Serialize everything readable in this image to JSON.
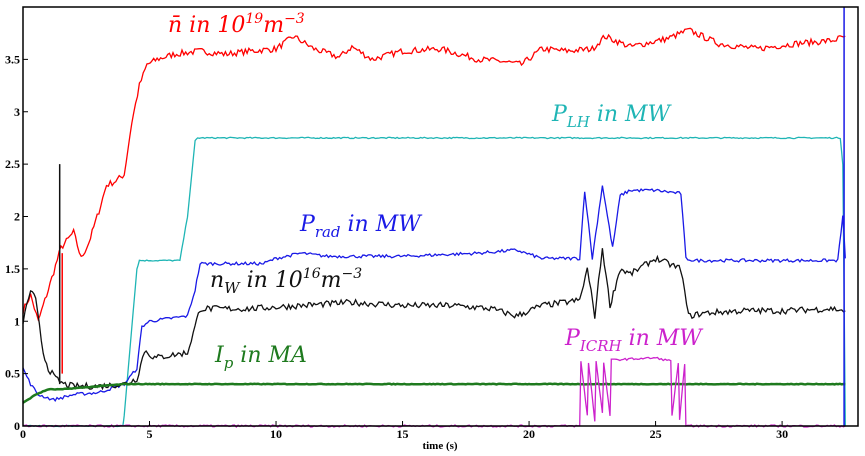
{
  "chart_data": {
    "type": "line",
    "xlabel": "time (s)",
    "ylabel": "",
    "xlim": [
      0,
      33
    ],
    "ylim": [
      0,
      4
    ],
    "xticks": [
      0,
      5,
      10,
      15,
      20,
      25,
      30
    ],
    "yticks": [
      0,
      0.5,
      1,
      1.5,
      2,
      2.5,
      3,
      3.5
    ],
    "ytick_labels": [
      "0",
      "0.5",
      "1",
      "1.5",
      "2",
      "2.5",
      "3",
      "3.5"
    ],
    "grid": false,
    "series": [
      {
        "name": "n̄ in 10¹⁹m⁻³",
        "label": {
          "main": "n̄ in 10",
          "sup1": "19",
          "mid": "m",
          "sup2": "−3"
        },
        "color": "#ff0000",
        "noise": 0.03,
        "x": [
          0,
          0.3,
          0.6,
          1.0,
          1.5,
          2.0,
          2.3,
          2.6,
          3.0,
          3.3,
          3.6,
          4.0,
          4.3,
          4.6,
          4.9,
          5.3,
          6.0,
          7.0,
          8.0,
          9.0,
          10.0,
          10.7,
          11.5,
          12.5,
          13.0,
          13.8,
          15.0,
          16.5,
          18.0,
          19.0,
          19.7,
          20.5,
          21.5,
          22.5,
          23.0,
          24.0,
          25.5,
          26.3,
          27.5,
          29.0,
          30.5,
          32.0,
          32.5
        ],
        "y": [
          1.1,
          1.25,
          1.0,
          1.3,
          1.7,
          1.85,
          1.6,
          1.75,
          2.05,
          2.3,
          2.33,
          2.4,
          2.9,
          3.25,
          3.45,
          3.5,
          3.55,
          3.58,
          3.55,
          3.58,
          3.6,
          3.72,
          3.6,
          3.52,
          3.62,
          3.5,
          3.58,
          3.6,
          3.5,
          3.48,
          3.45,
          3.6,
          3.58,
          3.6,
          3.72,
          3.62,
          3.7,
          3.78,
          3.65,
          3.6,
          3.65,
          3.68,
          3.72
        ]
      },
      {
        "name": "P_LH in MW",
        "label": {
          "main": "P",
          "sub": "LH",
          "rest": " in MW"
        },
        "color": "#1fb5b5",
        "noise": 0.006,
        "x": [
          0,
          3.95,
          4.0,
          4.5,
          4.6,
          6.2,
          6.5,
          6.8,
          6.9,
          15,
          25,
          32.3,
          32.4,
          32.5
        ],
        "y": [
          0,
          0,
          0.1,
          1.5,
          1.58,
          1.58,
          2.0,
          2.72,
          2.75,
          2.75,
          2.75,
          2.75,
          2.5,
          0
        ]
      },
      {
        "name": "P_rad in MW",
        "label": {
          "main": "P",
          "sub": "rad",
          "rest": " in MW"
        },
        "color": "#1a1ae6",
        "noise": 0.015,
        "x": [
          0,
          0.3,
          0.6,
          1.2,
          2.0,
          3.0,
          4.0,
          4.5,
          4.7,
          5.0,
          6.5,
          6.8,
          7.0,
          9.5,
          10.0,
          11.0,
          12.0,
          15.0,
          18.0,
          19.5,
          20.5,
          22.0,
          22.2,
          22.5,
          22.9,
          23.3,
          23.6,
          24.0,
          25.0,
          26.0,
          26.2,
          26.5,
          28.0,
          32.2,
          32.4,
          32.5
        ],
        "y": [
          0.55,
          0.4,
          0.3,
          0.25,
          0.3,
          0.32,
          0.4,
          0.55,
          0.95,
          1.0,
          1.05,
          1.3,
          1.55,
          1.55,
          1.6,
          1.65,
          1.62,
          1.62,
          1.65,
          1.68,
          1.6,
          1.6,
          2.25,
          1.6,
          2.3,
          1.7,
          2.2,
          2.25,
          2.25,
          2.22,
          1.6,
          1.58,
          1.58,
          1.58,
          2.0,
          1.6
        ]
      },
      {
        "name": "n_W in 10¹⁶m⁻³",
        "label": {
          "main": "n",
          "sub": "W",
          "rest": " in 10",
          "sup1": "16",
          "mid": "m",
          "sup2": "−3"
        },
        "color": "#111111",
        "noise": 0.03,
        "x": [
          0,
          0.3,
          0.5,
          0.8,
          1.0,
          1.3,
          1.6,
          2.0,
          3.0,
          4.0,
          4.5,
          4.8,
          5.2,
          6.5,
          6.8,
          7.0,
          9.0,
          11.0,
          13.0,
          15.0,
          17.0,
          18.5,
          19.5,
          20.5,
          22.0,
          22.3,
          22.6,
          22.9,
          23.2,
          23.6,
          24.0,
          25.0,
          26.0,
          26.3,
          27.0,
          28.5,
          30.0,
          32.0,
          32.5
        ],
        "y": [
          1.0,
          1.3,
          1.2,
          0.7,
          0.55,
          0.45,
          0.4,
          0.38,
          0.38,
          0.4,
          0.45,
          0.72,
          0.65,
          0.7,
          0.95,
          1.12,
          1.12,
          1.15,
          1.18,
          1.15,
          1.15,
          1.12,
          1.05,
          1.15,
          1.2,
          1.5,
          1.05,
          1.7,
          1.15,
          1.5,
          1.45,
          1.6,
          1.5,
          1.05,
          1.08,
          1.1,
          1.1,
          1.12,
          1.1
        ]
      },
      {
        "name": "I_p in MA",
        "label": {
          "main": "I",
          "sub": "p",
          "rest": " in MA"
        },
        "color": "#1e7a1e",
        "noise": 0.003,
        "x": [
          0,
          0.5,
          1.0,
          1.5,
          2.0,
          2.5,
          3.0,
          3.5,
          4.0,
          10,
          20,
          30,
          32.5
        ],
        "y": [
          0.22,
          0.3,
          0.35,
          0.35,
          0.36,
          0.37,
          0.38,
          0.39,
          0.4,
          0.4,
          0.4,
          0.4,
          0.4
        ]
      },
      {
        "name": "P_ICRH in MW",
        "label": {
          "main": "P",
          "sub": "ICRH",
          "rest": " in MW"
        },
        "color": "#cc22cc",
        "noise": 0.01,
        "x": [
          0,
          22.0,
          22.05,
          22.3,
          22.35,
          22.6,
          22.65,
          22.9,
          22.95,
          23.2,
          23.25,
          24.0,
          25.0,
          25.6,
          25.65,
          25.9,
          25.95,
          26.15,
          26.2,
          32.5
        ],
        "y": [
          0,
          0,
          0.62,
          0.1,
          0.6,
          0.05,
          0.62,
          0.12,
          0.6,
          0.1,
          0.63,
          0.64,
          0.65,
          0.62,
          0.1,
          0.6,
          0.05,
          0.6,
          0,
          0
        ]
      }
    ],
    "spikes": [
      {
        "color": "#111111",
        "x": 1.45,
        "y0": 0.4,
        "y1": 2.5
      },
      {
        "color": "#ff0000",
        "x": 1.55,
        "y0": 0.5,
        "y1": 1.65
      },
      {
        "color": "#1a1ae6",
        "x": 32.45,
        "y0": 0,
        "y1": 4
      }
    ]
  }
}
